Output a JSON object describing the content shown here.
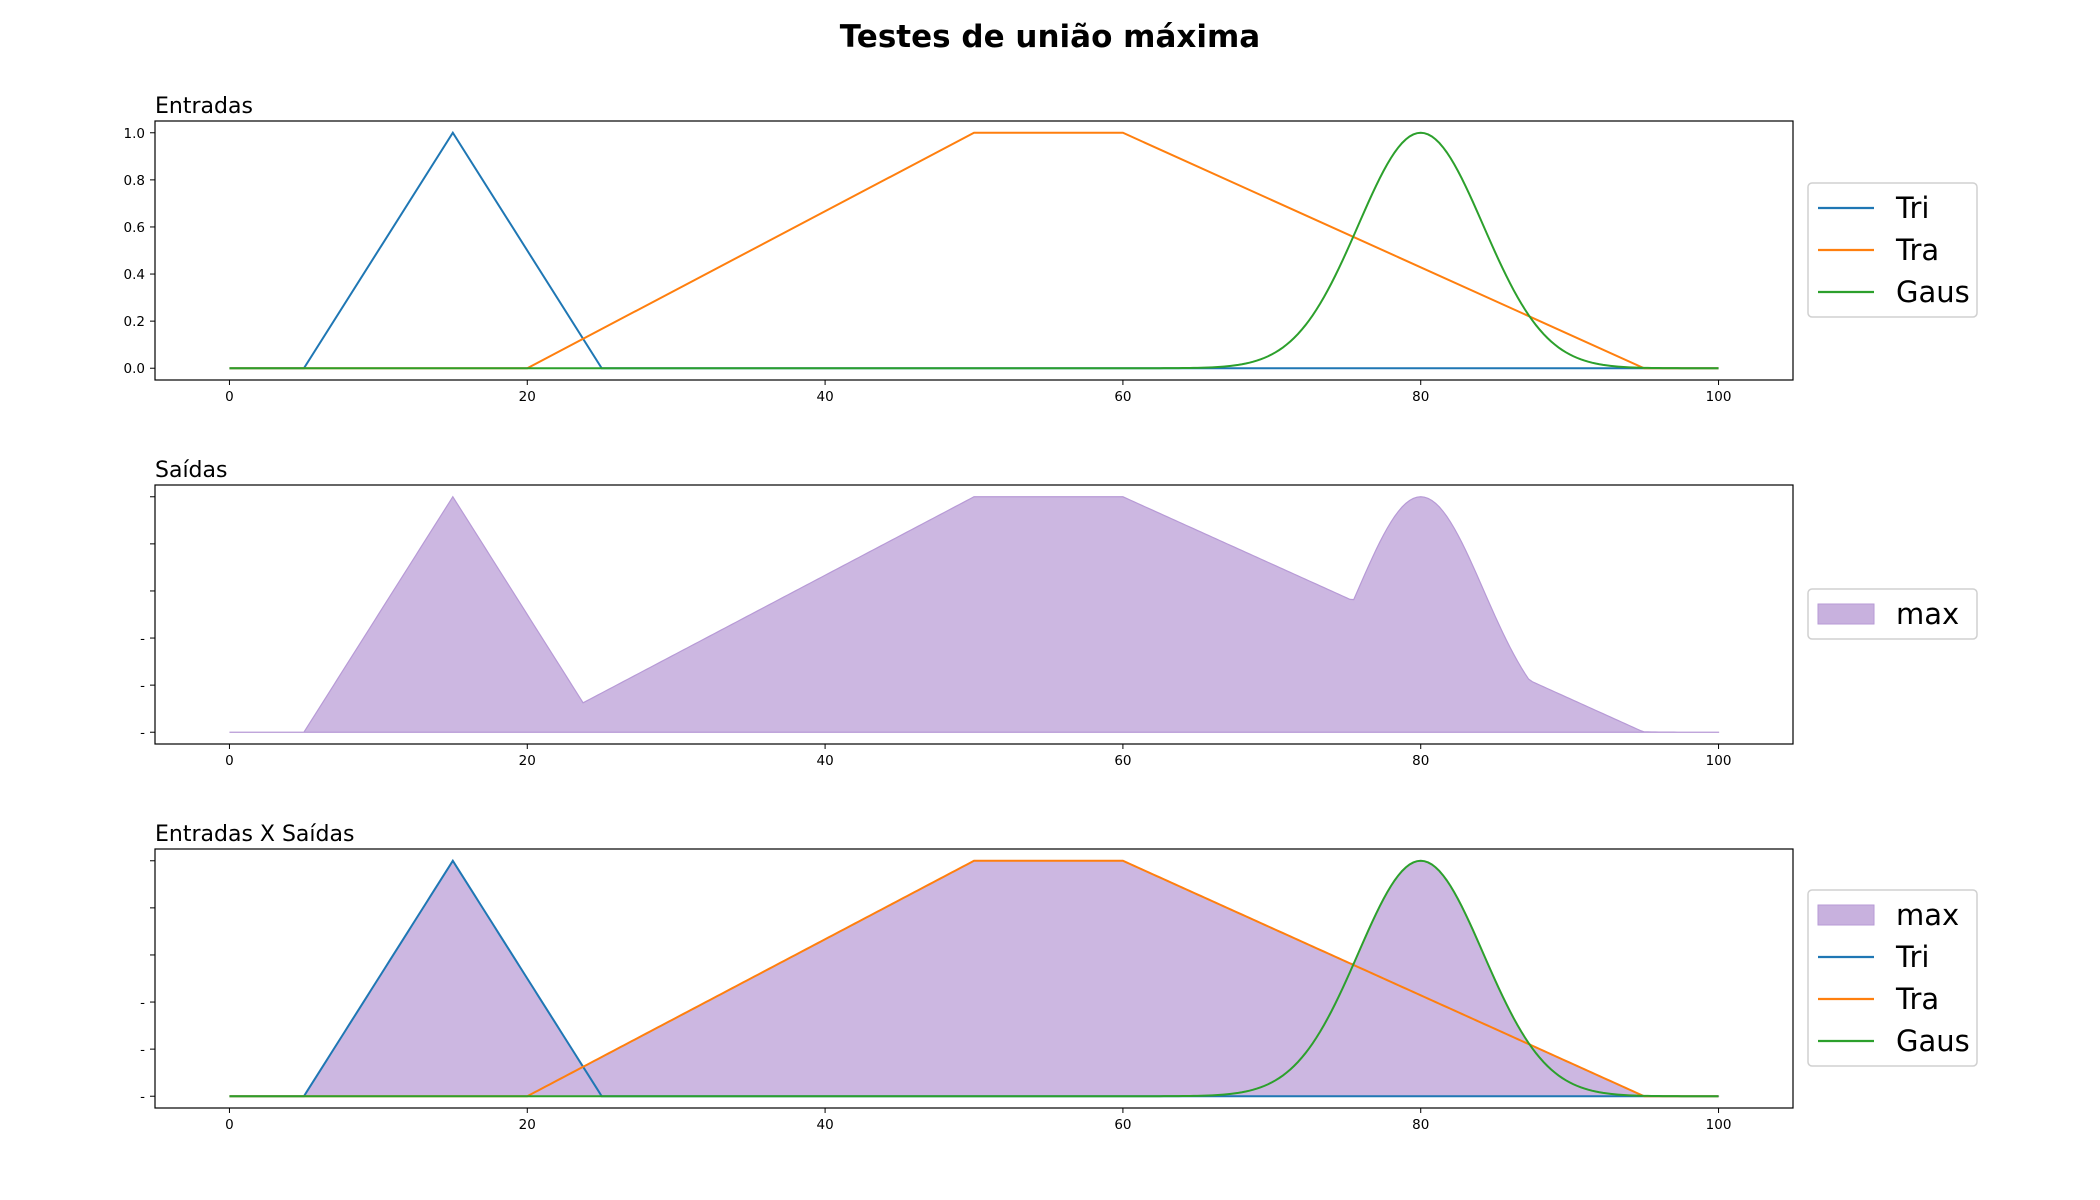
{
  "figure": {
    "title": "Testes de união máxima",
    "colors": {
      "tri": "#1f77b4",
      "tra": "#ff7f0e",
      "gaus": "#2ca02c",
      "max_fill": "#c8b1de",
      "max_edge": "#b79ad6"
    }
  },
  "chart_data": [
    {
      "type": "line",
      "title": "Entradas",
      "xlabel": "",
      "ylabel": "",
      "xlim": [
        -5,
        105
      ],
      "ylim": [
        -0.05,
        1.05
      ],
      "x_ticks": [
        "0",
        "20",
        "40",
        "60",
        "80",
        "100"
      ],
      "y_ticks": [
        "0.0",
        "0.2",
        "0.4",
        "0.6",
        "0.8",
        "1.0"
      ],
      "legend_position": "right",
      "series": [
        {
          "name": "Tri",
          "color": "#1f77b4",
          "points": [
            [
              0,
              0
            ],
            [
              5,
              0
            ],
            [
              15,
              1
            ],
            [
              25,
              0
            ],
            [
              100,
              0
            ]
          ]
        },
        {
          "name": "Tra",
          "color": "#ff7f0e",
          "points": [
            [
              0,
              0
            ],
            [
              20,
              0
            ],
            [
              50,
              1
            ],
            [
              60,
              1
            ],
            [
              95,
              0
            ],
            [
              100,
              0
            ]
          ]
        },
        {
          "name": "Gaus",
          "color": "#2ca02c",
          "function": "gaussian",
          "mean": 80,
          "sigma": 4.2,
          "x_range": [
            0,
            100
          ]
        }
      ]
    },
    {
      "type": "area",
      "title": "Saídas",
      "xlabel": "",
      "ylabel": "",
      "xlim": [
        -5,
        105
      ],
      "ylim": [
        -0.05,
        1.05
      ],
      "x_ticks": [
        "0",
        "20",
        "40",
        "60",
        "80",
        "100"
      ],
      "y_ticks": [
        "-",
        "-",
        "-",
        "",
        "",
        ""
      ],
      "legend_position": "right",
      "series": [
        {
          "name": "max",
          "color": "#c8b1de",
          "function": "max",
          "of": [
            "Tri",
            "Tra",
            "Gaus"
          ]
        }
      ]
    },
    {
      "type": "area",
      "title": "Entradas X Saídas",
      "xlabel": "",
      "ylabel": "",
      "xlim": [
        -5,
        105
      ],
      "ylim": [
        -0.05,
        1.05
      ],
      "x_ticks": [
        "0",
        "20",
        "40",
        "60",
        "80",
        "100"
      ],
      "y_ticks": [
        "-",
        "-",
        "-",
        "",
        "",
        ""
      ],
      "legend_position": "right",
      "series": [
        {
          "name": "max",
          "color": "#c8b1de",
          "function": "max",
          "of": [
            "Tri",
            "Tra",
            "Gaus"
          ]
        },
        {
          "name": "Tri",
          "color": "#1f77b4",
          "ref": "Tri"
        },
        {
          "name": "Tra",
          "color": "#ff7f0e",
          "ref": "Tra"
        },
        {
          "name": "Gaus",
          "color": "#2ca02c",
          "ref": "Gaus"
        }
      ]
    }
  ]
}
